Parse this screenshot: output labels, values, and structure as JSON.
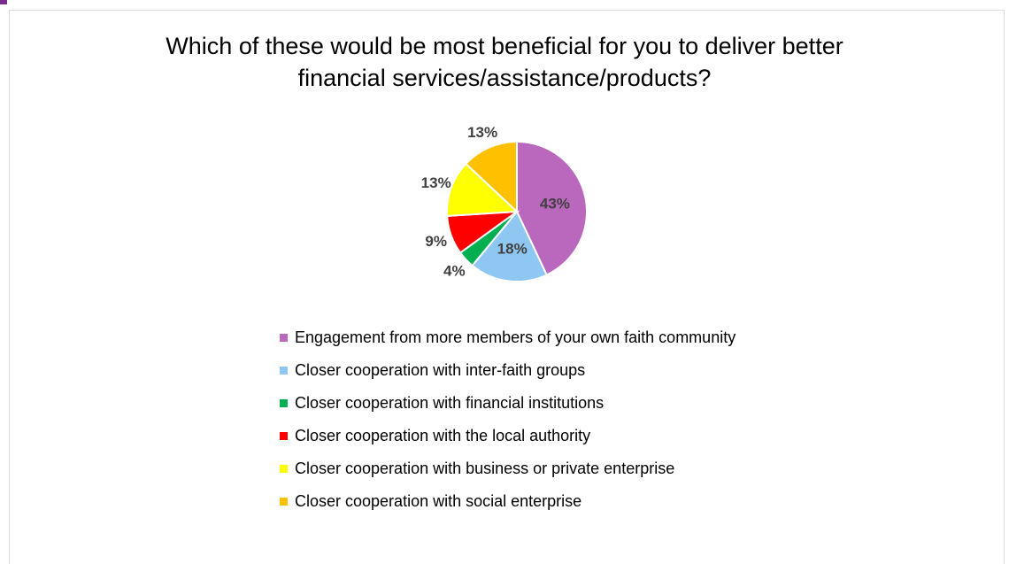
{
  "chart_data": {
    "type": "pie",
    "title_lines": [
      "Which of these would be most beneficial for you to deliver better",
      "financial services/assistance/products?"
    ],
    "slices": [
      {
        "label": "Engagement from more members of your own faith community",
        "value": 43,
        "value_label": "43%",
        "color": "#b968bd"
      },
      {
        "label": "Closer cooperation with inter-faith groups",
        "value": 18,
        "value_label": "18%",
        "color": "#8ec7f2"
      },
      {
        "label": "Closer cooperation with financial institutions",
        "value": 4,
        "value_label": "4%",
        "color": "#00b050"
      },
      {
        "label": "Closer cooperation with the local authority",
        "value": 9,
        "value_label": "9%",
        "color": "#ff0000"
      },
      {
        "label": "Closer cooperation with business or private enterprise",
        "value": 13,
        "value_label": "13%",
        "color": "#ffff00"
      },
      {
        "label": "Closer cooperation with social enterprise",
        "value": 13,
        "value_label": "13%",
        "color": "#ffc000"
      }
    ],
    "legend_position": "bottom"
  }
}
